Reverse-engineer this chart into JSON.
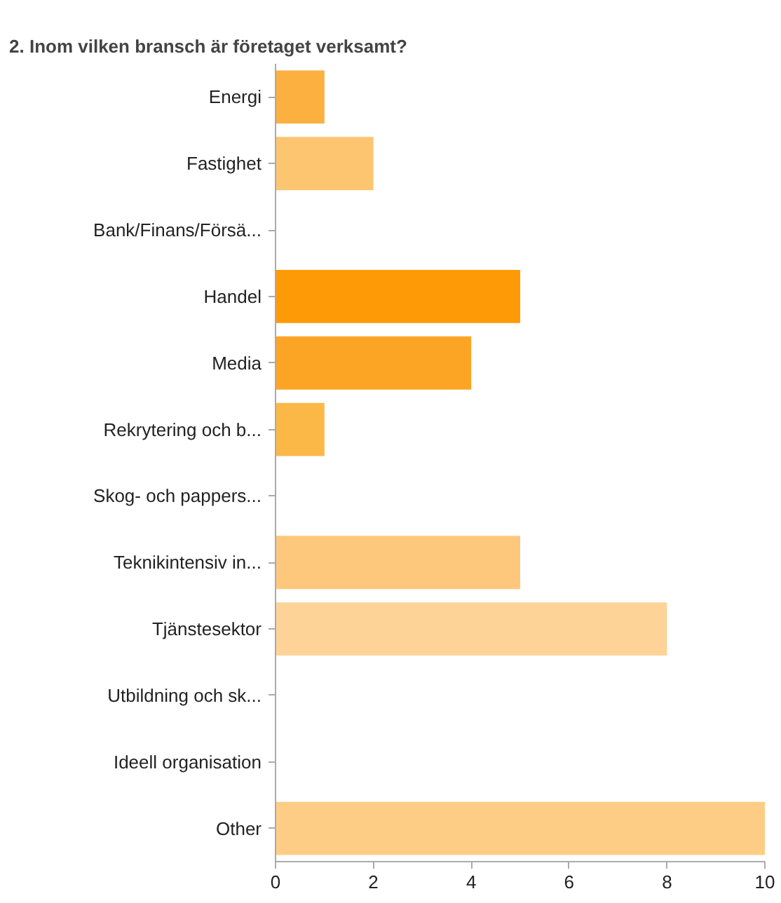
{
  "chart_data": {
    "type": "bar",
    "orientation": "horizontal",
    "title": "2. Inom vilken bransch är företaget verksamt?",
    "categories": [
      "Energi",
      "Fastighet",
      "Bank/Finans/Försä...",
      "Handel",
      "Media",
      "Rekrytering och b...",
      "Skog- och pappers...",
      "Teknikintensiv in...",
      "Tjänstesektor",
      "Utbildning och sk...",
      "Ideell organisation",
      "Other"
    ],
    "values": [
      1,
      2,
      0,
      5,
      4,
      1,
      0,
      5,
      8,
      0,
      0,
      10
    ],
    "colors": [
      "#fbb040",
      "#fdc56f",
      "#fdc56f",
      "#fd9a05",
      "#fca524",
      "#fbb847",
      "#fdc56f",
      "#fdc87b",
      "#fdd397",
      "#fdc56f",
      "#fdc56f",
      "#fdcd85"
    ],
    "xlim": [
      0,
      10
    ],
    "xticks": [
      0,
      2,
      4,
      6,
      8,
      10
    ],
    "grid": false
  }
}
